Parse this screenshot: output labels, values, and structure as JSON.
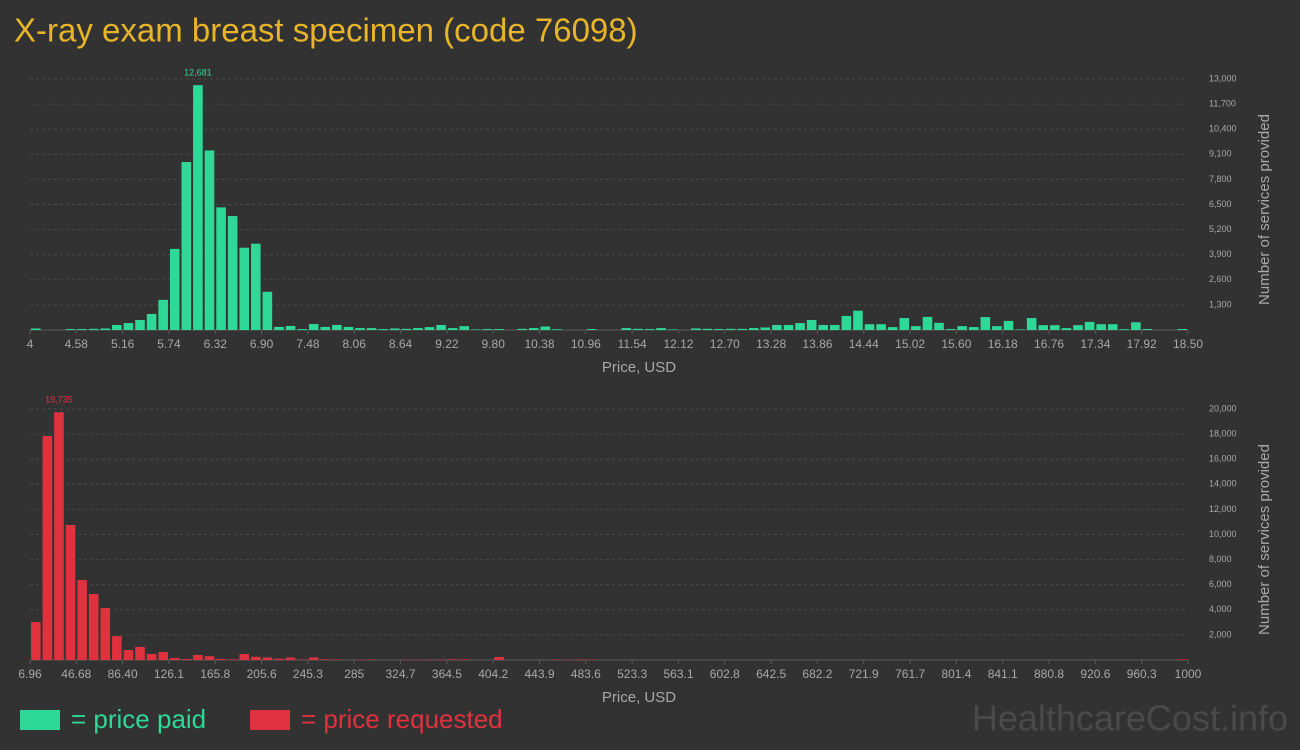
{
  "title": "X-ray exam breast specimen (code 76098)",
  "watermark": "HealthcareCost.info",
  "legend": [
    {
      "label": "= price paid",
      "color": "#2ed896"
    },
    {
      "label": "= price requested",
      "color": "#e0323e"
    }
  ],
  "chart_data": [
    {
      "type": "histogram",
      "color": "#2ed896",
      "x_label": "Price, USD",
      "y_label": "Number of services provided",
      "grid": true,
      "xlim": [
        4,
        18.5
      ],
      "ylim": [
        0,
        13000
      ],
      "xticks": [
        4,
        4.58,
        5.16,
        5.74,
        6.32,
        {
          "value": 6.9,
          "label": "6.90"
        },
        7.48,
        8.06,
        8.64,
        9.22,
        {
          "value": 9.8,
          "label": "9.80"
        },
        10.38,
        10.96,
        11.54,
        12.12,
        {
          "value": 12.7,
          "label": "12.70"
        },
        13.28,
        13.86,
        14.44,
        15.02,
        {
          "value": 15.6,
          "label": "15.60"
        },
        16.18,
        16.76,
        17.34,
        17.92,
        {
          "value": 18.5,
          "label": "18.50"
        }
      ],
      "yticks": [
        {
          "value": 1300,
          "label": "1,300"
        },
        {
          "value": 2600,
          "label": "2,600"
        },
        {
          "value": 3900,
          "label": "3,900"
        },
        {
          "value": 5200,
          "label": "5,200"
        },
        {
          "value": 6500,
          "label": "6,500"
        },
        {
          "value": 7800,
          "label": "7,800"
        },
        {
          "value": 9100,
          "label": "9,100"
        },
        {
          "value": 10400,
          "label": "10,400"
        },
        {
          "value": 11700,
          "label": "11,700"
        },
        {
          "value": 13000,
          "label": "13,000"
        }
      ],
      "bins": [
        4,
        4.145,
        4.29,
        4.435,
        4.58,
        4.725,
        4.87,
        5.015,
        5.16,
        5.305,
        5.45,
        5.595,
        5.74,
        5.885,
        6.03,
        6.175,
        6.32,
        6.465,
        6.61,
        6.755,
        6.9,
        7.045,
        7.19,
        7.335,
        7.48,
        7.625,
        7.77,
        7.915,
        8.06,
        8.205,
        8.35,
        8.495,
        8.64,
        8.785,
        8.93,
        9.075,
        9.22,
        9.365,
        9.51,
        9.655,
        9.8,
        9.945,
        10.09,
        10.235,
        10.38,
        10.525,
        10.67,
        10.815,
        10.96,
        11.105,
        11.25,
        11.395,
        11.54,
        11.685,
        11.83,
        11.975,
        12.12,
        12.265,
        12.41,
        12.555,
        12.7,
        12.845,
        12.99,
        13.135,
        13.28,
        13.425,
        13.57,
        13.715,
        13.86,
        14.005,
        14.15,
        14.295,
        14.44,
        14.585,
        14.73,
        14.875,
        15.02,
        15.165,
        15.31,
        15.455,
        15.6,
        15.745,
        15.89,
        16.035,
        16.18,
        16.325,
        16.47,
        16.615,
        16.76,
        16.905,
        17.05,
        17.195,
        17.34,
        17.485,
        17.63,
        17.775,
        17.92,
        18.065,
        18.21,
        18.355,
        18.5
      ],
      "values": [
        80,
        0,
        0,
        50,
        50,
        60,
        80,
        260,
        360,
        520,
        830,
        1560,
        4200,
        8700,
        12681,
        9300,
        6350,
        5900,
        4260,
        4470,
        1980,
        160,
        210,
        50,
        310,
        160,
        260,
        160,
        100,
        100,
        50,
        80,
        60,
        100,
        150,
        260,
        100,
        200,
        30,
        50,
        50,
        0,
        60,
        100,
        180,
        40,
        0,
        0,
        50,
        0,
        0,
        100,
        60,
        50,
        100,
        30,
        0,
        80,
        60,
        50,
        60,
        60,
        100,
        130,
        260,
        260,
        360,
        520,
        260,
        260,
        730,
        1000,
        300,
        300,
        150,
        620,
        200,
        680,
        370,
        50,
        200,
        150,
        670,
        200,
        470,
        30,
        620,
        250,
        250,
        100,
        250,
        420,
        300,
        300,
        40,
        400,
        50,
        0,
        0,
        50
      ],
      "value_labels": [
        null,
        null,
        null,
        null,
        null,
        null,
        null,
        null,
        null,
        null,
        null,
        null,
        null,
        null,
        "12,681",
        null,
        null,
        null,
        null,
        null,
        null,
        null,
        null,
        null,
        null,
        null,
        null,
        null,
        null,
        null,
        null,
        null,
        null,
        null,
        null,
        null,
        null,
        null,
        null,
        null,
        null,
        null,
        null,
        null,
        null,
        null,
        null,
        null,
        null,
        null,
        null,
        null,
        null,
        null,
        null,
        null,
        null,
        null,
        null,
        null,
        null,
        null,
        null,
        null,
        null,
        null,
        null,
        null,
        null,
        null,
        null,
        null,
        null,
        null,
        null,
        null,
        null,
        null,
        null,
        null,
        null,
        null,
        null,
        null,
        null,
        null,
        null,
        null,
        null,
        null,
        null,
        null,
        null,
        null,
        null,
        null,
        null,
        null,
        null,
        null
      ]
    },
    {
      "type": "histogram",
      "color": "#e0323e",
      "x_label": "Price, USD",
      "y_label": "Number of services provided",
      "grid": true,
      "xlim": [
        6.96,
        1000
      ],
      "ylim": [
        0,
        20000
      ],
      "xticks": [
        6.96,
        46.68,
        {
          "value": 86.4,
          "label": "86.40"
        },
        126.1,
        165.8,
        205.6,
        245.3,
        285,
        324.7,
        364.5,
        404.2,
        443.9,
        483.6,
        523.3,
        563.1,
        602.8,
        642.5,
        682.2,
        721.9,
        761.7,
        801.4,
        841.1,
        880.8,
        920.6,
        960.3,
        1000
      ],
      "yticks": [
        {
          "value": 2000,
          "label": "2,000"
        },
        {
          "value": 4000,
          "label": "4,000"
        },
        {
          "value": 6000,
          "label": "6,000"
        },
        {
          "value": 8000,
          "label": "8,000"
        },
        {
          "value": 10000,
          "label": "10,000"
        },
        {
          "value": 12000,
          "label": "12,000"
        },
        {
          "value": 14000,
          "label": "14,000"
        },
        {
          "value": 16000,
          "label": "16,000"
        },
        {
          "value": 18000,
          "label": "18,000"
        },
        {
          "value": 20000,
          "label": "20,000"
        }
      ],
      "bins": [
        6.96,
        16.89,
        26.82,
        36.75,
        46.68,
        56.61,
        66.54,
        76.47,
        86.4,
        96.33,
        106.26,
        116.19,
        126.12,
        136.06,
        145.99,
        155.92,
        165.85,
        175.78,
        185.71,
        195.64,
        205.57,
        215.5,
        225.43,
        235.36,
        245.29,
        255.22,
        265.15,
        275.08,
        285.01,
        294.94,
        304.87,
        314.8,
        324.73,
        334.66,
        344.59,
        354.52,
        364.45,
        374.38,
        384.32,
        394.25,
        404.18,
        414.11,
        424.04,
        433.97,
        443.9,
        453.83,
        463.76,
        473.69,
        483.62,
        493.55,
        503.48,
        513.41,
        523.34,
        533.27,
        543.2,
        553.13,
        563.06,
        572.99,
        582.92,
        592.85,
        602.78,
        612.71,
        622.64,
        632.58,
        642.51,
        652.44,
        662.37,
        672.3,
        682.23,
        692.16,
        702.09,
        712.02,
        721.95,
        731.88,
        741.81,
        751.74,
        761.67,
        771.6,
        781.53,
        791.46,
        801.39,
        811.32,
        821.25,
        831.18,
        841.11,
        851.04,
        860.97,
        870.91,
        880.84,
        890.77,
        900.7,
        910.63,
        920.56,
        930.49,
        940.42,
        950.35,
        960.28,
        970.21,
        980.14,
        990.07,
        1000
      ],
      "values": [
        3030,
        17850,
        19735,
        10760,
        6380,
        5260,
        4140,
        1900,
        800,
        1040,
        480,
        640,
        160,
        80,
        400,
        300,
        80,
        50,
        480,
        250,
        200,
        100,
        200,
        40,
        200,
        60,
        40,
        0,
        30,
        40,
        0,
        0,
        30,
        30,
        30,
        40,
        50,
        50,
        0,
        0,
        240,
        0,
        0,
        0,
        0,
        30,
        30,
        40,
        30,
        0,
        0,
        0,
        0,
        0,
        0,
        0,
        0,
        0,
        0,
        0,
        0,
        0,
        0,
        0,
        0,
        0,
        0,
        0,
        0,
        0,
        0,
        0,
        0,
        0,
        0,
        0,
        0,
        0,
        0,
        0,
        0,
        0,
        0,
        0,
        0,
        0,
        0,
        0,
        0,
        0,
        0,
        0,
        0,
        0,
        0,
        0,
        0,
        0,
        0,
        50
      ],
      "value_labels": [
        null,
        null,
        "19,735",
        null,
        null,
        null,
        null,
        null,
        null,
        null,
        null,
        null,
        null,
        null,
        null,
        null,
        null,
        null,
        null,
        null,
        null,
        null,
        null,
        null,
        null,
        null,
        null,
        null,
        null,
        null,
        null,
        null,
        null,
        null,
        null,
        null,
        null,
        null,
        null,
        null,
        null,
        null,
        null,
        null,
        null,
        null,
        null,
        null,
        null,
        null,
        null,
        null,
        null,
        null,
        null,
        null,
        null,
        null,
        null,
        null,
        null,
        null,
        null,
        null,
        null,
        null,
        null,
        null,
        null,
        null,
        null,
        null,
        null,
        null,
        null,
        null,
        null,
        null,
        null,
        null,
        null,
        null,
        null,
        null,
        null,
        null,
        null,
        null,
        null,
        null,
        null,
        null,
        null,
        null,
        null,
        null,
        null,
        null,
        null,
        null
      ]
    }
  ]
}
